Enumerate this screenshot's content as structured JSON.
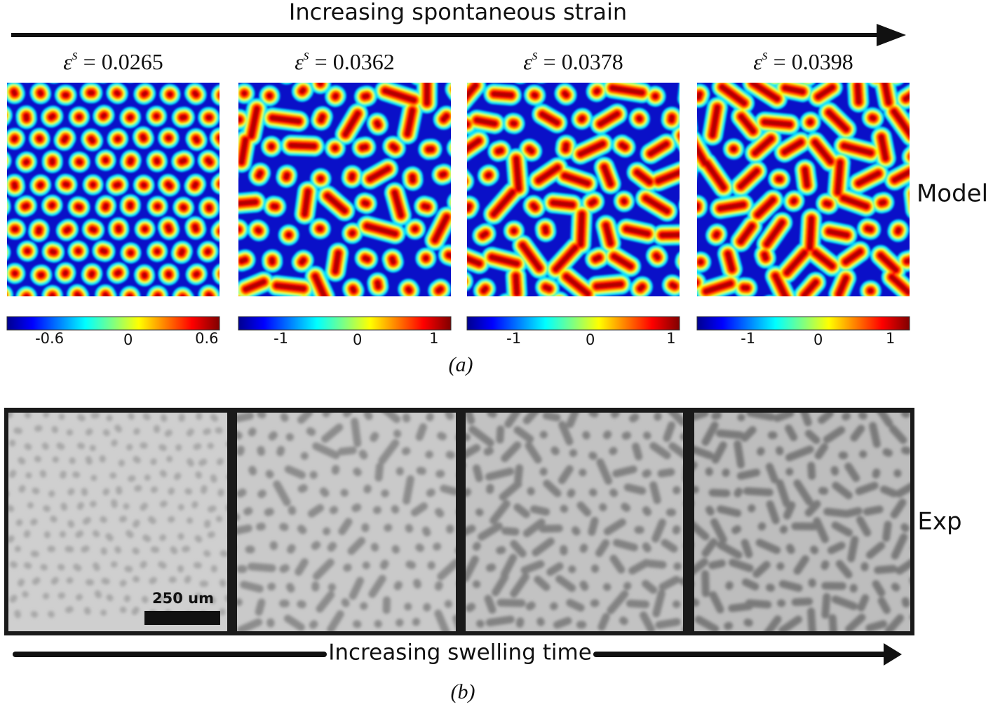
{
  "header": {
    "title": "Increasing spontaneous strain"
  },
  "model_panels": [
    {
      "symbol": "ε",
      "superscript": "s",
      "value": "= 0.0265",
      "colorbar_ticks": [
        "-0.6",
        "0",
        "0.6"
      ]
    },
    {
      "symbol": "ε",
      "superscript": "s",
      "value": "= 0.0362",
      "colorbar_ticks": [
        "-1",
        "0",
        "1"
      ]
    },
    {
      "symbol": "ε",
      "superscript": "s",
      "value": "= 0.0378",
      "colorbar_ticks": [
        "-1",
        "0",
        "1"
      ]
    },
    {
      "symbol": "ε",
      "superscript": "s",
      "value": "= 0.0398",
      "colorbar_ticks": [
        "-1",
        "0",
        "1"
      ]
    }
  ],
  "model_label": "Model",
  "caption_a": "(a)",
  "exp_label": "Exp",
  "scale_bar": "250 um",
  "footer": {
    "title": "Increasing swelling time"
  },
  "caption_b": "(b)"
}
